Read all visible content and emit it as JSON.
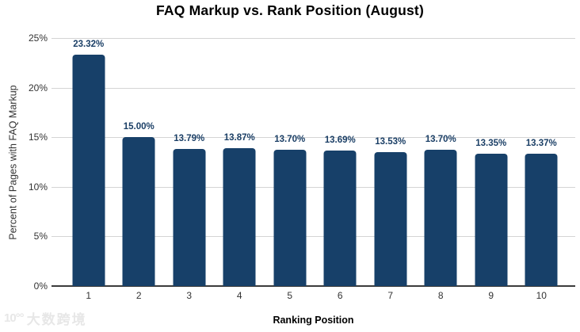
{
  "chart_data": {
    "type": "bar",
    "title": "FAQ Markup vs. Rank Position (August)",
    "xlabel": "Ranking Position",
    "ylabel": "Percent of Pages with FAQ Markup",
    "categories": [
      "1",
      "2",
      "3",
      "4",
      "5",
      "6",
      "7",
      "8",
      "9",
      "10"
    ],
    "values": [
      23.32,
      15.0,
      13.79,
      13.87,
      13.7,
      13.69,
      13.53,
      13.7,
      13.35,
      13.37
    ],
    "labels": [
      "23.32%",
      "15.00%",
      "13.79%",
      "13.87%",
      "13.70%",
      "13.69%",
      "13.53%",
      "13.70%",
      "13.35%",
      "13.37%"
    ],
    "y_ticks": [
      "25%",
      "20%",
      "15%",
      "10%",
      "5%",
      "0%"
    ],
    "ylim": [
      0,
      25
    ],
    "grid": "horizontal",
    "legend": "none",
    "bar_color": "#174069",
    "label_color": "#1b3f66",
    "gridline_color": "#d4d4d4",
    "axis_color": "#3c3c3c"
  },
  "watermark": {
    "logo_text": "10°°",
    "text": "大数跨境"
  }
}
